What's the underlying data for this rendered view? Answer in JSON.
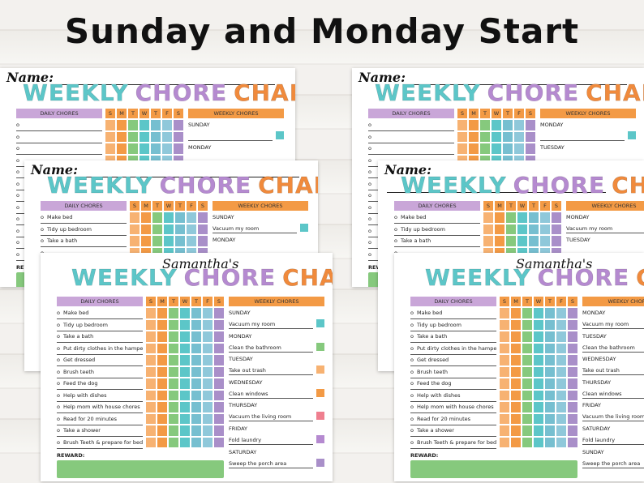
{
  "headline": "Sunday and Monday Start",
  "chart_title": [
    "WEEKLY",
    "CHORE",
    "CHART"
  ],
  "title_colors": {
    "weekly": "#5cc6c8",
    "chore": "#b58ad0",
    "chart": "#f08a3c"
  },
  "name_label": "Name:",
  "owner_name": "Samantha's",
  "daily_header": "DAILY CHORES",
  "weekly_header": "WEEKLY CHORES",
  "day_letters": [
    "S",
    "M",
    "T",
    "W",
    "T",
    "F",
    "S"
  ],
  "colors": {
    "day_column_colors": [
      "#f7b272",
      "#f39a45",
      "#86c97d",
      "#5cc6c8",
      "#76bfd0",
      "#8fc8da",
      "#a98fc9"
    ],
    "header_orange": "#f39a45",
    "header_purple": "#c9a6d8",
    "reward_green": "#86c97d"
  },
  "daily_chores": [
    "Make bed",
    "Tidy up bedroom",
    "Take a bath",
    "Put dirty clothes in the hamper",
    "Get dressed",
    "Brush teeth",
    "Feed the dog",
    "Help with dishes",
    "Help mom with house chores",
    "Read for 20 minutes",
    "Take a shower",
    "Brush Teeth & prepare for bed"
  ],
  "bullet": "o",
  "sunday_start": {
    "days": [
      "SUNDAY",
      "MONDAY",
      "TUESDAY",
      "WEDNESDAY",
      "THURSDAY",
      "FRIDAY",
      "SATURDAY"
    ],
    "tasks": [
      "Vacuum my room",
      "Clean the bathroom",
      "Take out trash",
      "Clean windows",
      "Vacuum the living room",
      "Fold laundry",
      "Sweep the porch area"
    ],
    "box_colors": [
      "#5cc6c8",
      "#86c97d",
      "#f7b272",
      "#f39a45",
      "#ef7f8f",
      "#b58ad0",
      "#a98fc9"
    ]
  },
  "monday_start": {
    "days": [
      "MONDAY",
      "TUESDAY",
      "WEDNESDAY",
      "THURSDAY",
      "FRIDAY",
      "SATURDAY",
      "SUNDAY"
    ],
    "tasks": [
      "Vacuum my room",
      "Clean the bathroom",
      "Take out trash",
      "Clean windows",
      "Vacuum the living room",
      "Fold laundry",
      "Sweep the porch area"
    ]
  },
  "reward_label": "REWARD:"
}
